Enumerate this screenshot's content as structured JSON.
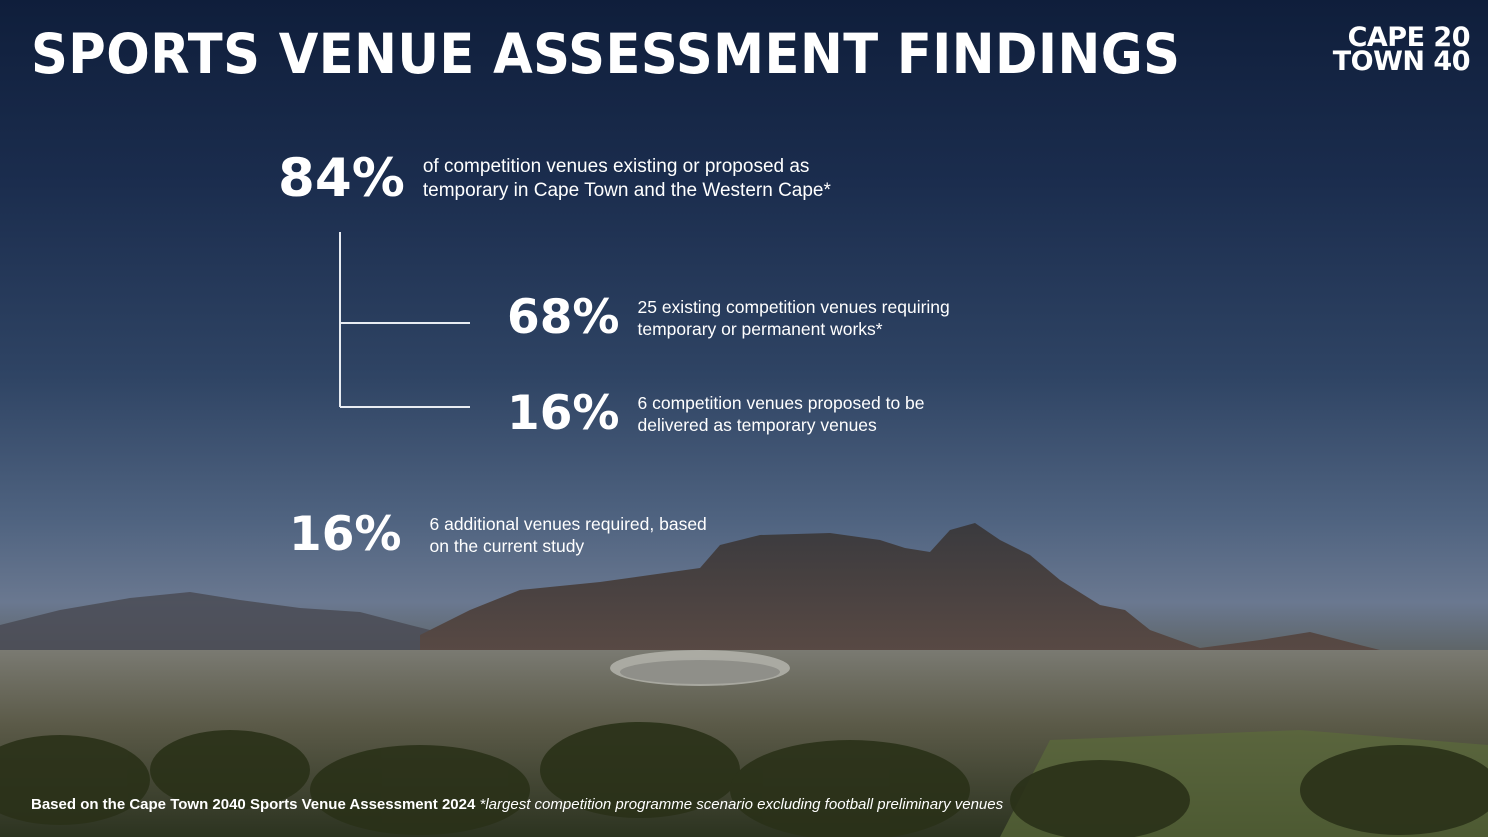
{
  "title": "SPORTS VENUE ASSESSMENT FINDINGS",
  "logo": {
    "line1": "CAPE 20",
    "line2": "TOWN 40"
  },
  "stats": {
    "main": {
      "value": "84%",
      "line1": "of competition venues existing or proposed as",
      "line2": "temporary in Cape Town and the Western Cape*"
    },
    "sub1": {
      "value": "68%",
      "line1": "25 existing competition venues requiring",
      "line2": "temporary or permanent works*"
    },
    "sub2": {
      "value": "16%",
      "line1": "6 competition venues proposed to be",
      "line2": "delivered as temporary venues"
    },
    "extra": {
      "value": "16%",
      "line1": "6 additional venues required, based",
      "line2": "on the current study"
    }
  },
  "footer": {
    "source": "Based on the Cape Town 2040 Sports Venue Assessment 2024",
    "note": "*largest competition programme scenario excluding football preliminary venues"
  }
}
